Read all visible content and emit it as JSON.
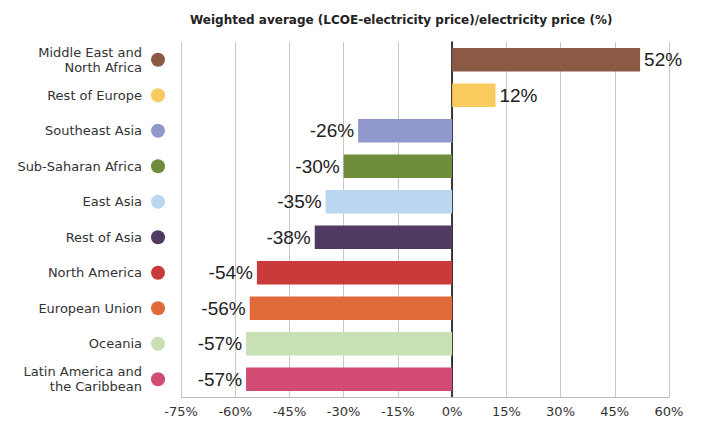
{
  "chart_data": {
    "type": "bar",
    "title": "Weighted average (LCOE-electricity price)/electricity price (%)",
    "orientation": "horizontal",
    "categories": [
      "Middle East and North Africa",
      "Rest of Europe",
      "Southeast Asia",
      "Sub-Saharan Africa",
      "East Asia",
      "Rest of Asia",
      "North America",
      "European Union",
      "Oceania",
      "Latin America and the Caribbean"
    ],
    "values": [
      52,
      12,
      -26,
      -30,
      -35,
      -38,
      -54,
      -56,
      -57,
      -57
    ],
    "value_labels": [
      "52%",
      "12%",
      "-26%",
      "-30%",
      "-35%",
      "-38%",
      "-54%",
      "-56%",
      "-57%",
      "-57%"
    ],
    "colors": [
      "#8b5a45",
      "#f9cb5e",
      "#8f97cd",
      "#6e8c3a",
      "#bbd6f0",
      "#4f3a62",
      "#c83b3a",
      "#e06a3a",
      "#c9e0b5",
      "#d24b72"
    ],
    "xlim": [
      -75,
      60
    ],
    "xticks": [
      {
        "value": -75,
        "label": "-75%"
      },
      {
        "value": -60,
        "label": "-60%"
      },
      {
        "value": -45,
        "label": "-45%"
      },
      {
        "value": -30,
        "label": "-30%"
      },
      {
        "value": -15,
        "label": "-15%"
      },
      {
        "value": 0,
        "label": "0%"
      },
      {
        "value": 15,
        "label": "15%"
      },
      {
        "value": 30,
        "label": "30%"
      },
      {
        "value": 45,
        "label": "45%"
      },
      {
        "value": 60,
        "label": "60%"
      }
    ],
    "grid": true,
    "data_labels": true
  }
}
